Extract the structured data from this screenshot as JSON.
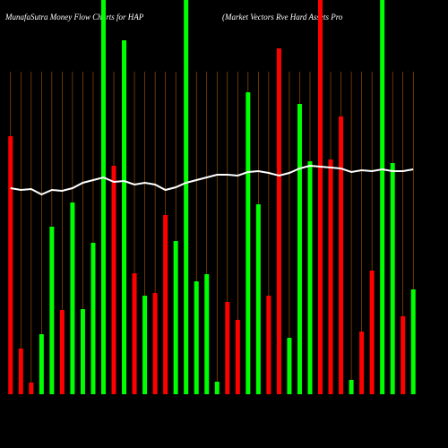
{
  "chart_data": {
    "type": "bar",
    "title": "MunafaSutra  Money Flow  Charts for HAP",
    "subtitle": "(Market Vectors Rve    Hard Assets Pro",
    "categories": [
      null,
      null,
      null,
      null,
      null,
      null,
      null,
      null,
      null,
      null,
      null,
      null,
      null,
      null,
      null,
      null,
      null,
      null,
      null,
      null,
      null,
      null,
      null,
      null,
      null,
      null,
      null,
      null,
      null,
      null,
      null,
      null,
      null,
      null,
      null,
      null,
      null,
      null,
      null,
      null
    ],
    "values": [
      288,
      51,
      13,
      67,
      187,
      94,
      214,
      95,
      169,
      440,
      255,
      395,
      135,
      110,
      113,
      200,
      171,
      440,
      126,
      134,
      14,
      103,
      83,
      337,
      212,
      110,
      386,
      63,
      324,
      260,
      440,
      262,
      310,
      16,
      70,
      138,
      440,
      258,
      87,
      117
    ],
    "colors": [
      "#ff0000",
      "#ff0000",
      "#ff0000",
      "#00ff00",
      "#00ff00",
      "#ff0000",
      "#00ff00",
      "#00ff00",
      "#00ff00",
      "#00ff00",
      "#ff0000",
      "#00ff00",
      "#ff0000",
      "#00ff00",
      "#ff0000",
      "#ff0000",
      "#00ff00",
      "#00ff00",
      "#00ff00",
      "#00ff00",
      "#00ff00",
      "#ff0000",
      "#ff0000",
      "#00ff00",
      "#00ff00",
      "#ff0000",
      "#ff0000",
      "#00ff00",
      "#00ff00",
      "#00ff00",
      "#ff0000",
      "#ff0000",
      "#ff0000",
      "#00ff00",
      "#ff0000",
      "#ff0000",
      "#00ff00",
      "#00ff00",
      "#ff0000",
      "#00ff00"
    ],
    "line": {
      "color": "#ffffff",
      "values": [
        230,
        228,
        229,
        223,
        228,
        227,
        230,
        236,
        239,
        242,
        237,
        238,
        234,
        236,
        234,
        228,
        231,
        236,
        239,
        242,
        245,
        245,
        244,
        248,
        249,
        247,
        244,
        247,
        252,
        255,
        254,
        253,
        252,
        248,
        250,
        249,
        251,
        249,
        249,
        251
      ]
    },
    "ylim": [
      0,
      440
    ],
    "grid": true,
    "grid_color": "#b35900",
    "background": "#000000"
  }
}
